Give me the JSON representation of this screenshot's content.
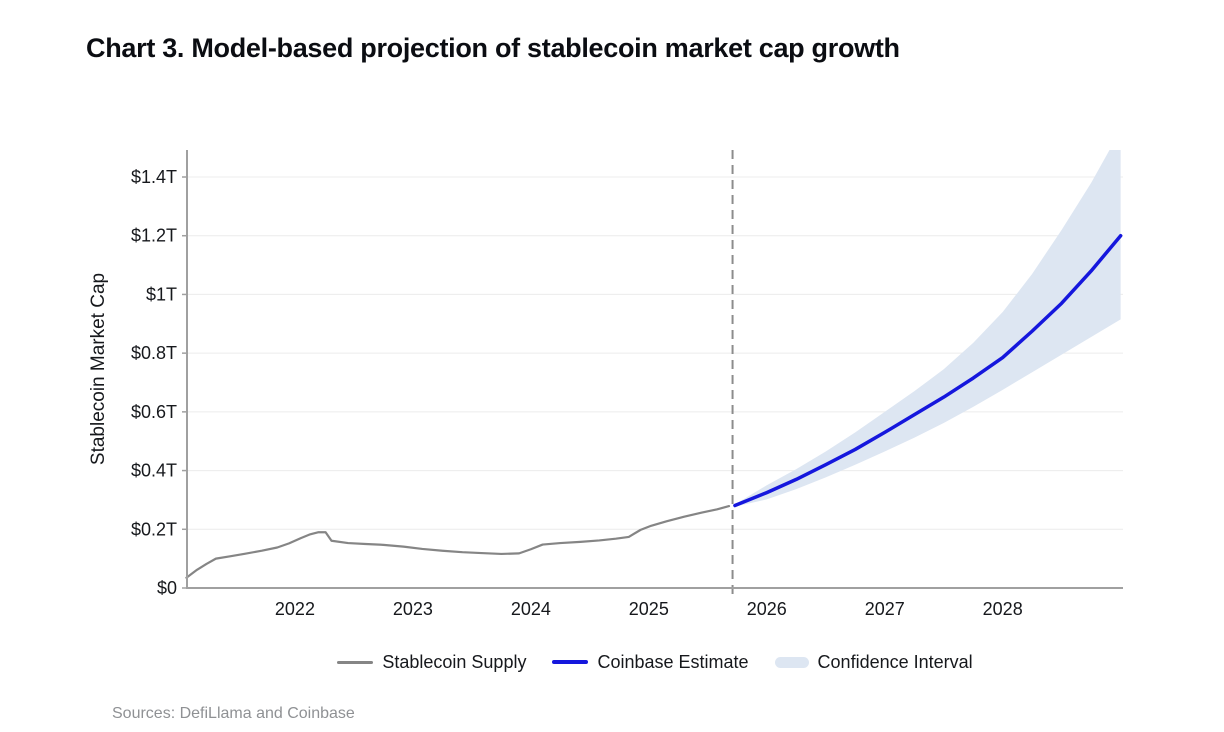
{
  "title": "Chart 3. Model-based projection of stablecoin market cap growth",
  "sources": "Sources: DefiLlama and Coinbase",
  "legend": {
    "items": [
      {
        "label": "Stablecoin Supply",
        "type": "line",
        "color": "#858585"
      },
      {
        "label": "Coinbase Estimate",
        "type": "line",
        "color": "#1517dd"
      },
      {
        "label": "Confidence Interval",
        "type": "area",
        "color": "#dde6f2"
      }
    ]
  },
  "chart_data": {
    "type": "line",
    "title": "Chart 3. Model-based projection of stablecoin market cap growth",
    "xlabel": "",
    "ylabel": "Stablecoin Market Cap",
    "units": "trillions USD",
    "xlim": [
      2021.085,
      2029.02
    ],
    "ylim": [
      0,
      1.492
    ],
    "grid": "horizontal",
    "legend_position": "bottom",
    "x_tick_values": [
      2022,
      2023,
      2024,
      2025,
      2026,
      2027,
      2028
    ],
    "x_tick_labels": [
      "2022",
      "2023",
      "2024",
      "2025",
      "2026",
      "2027",
      "2028"
    ],
    "y_tick_values": [
      0,
      0.2,
      0.4,
      0.6,
      0.8,
      1.0,
      1.2,
      1.4
    ],
    "y_tick_labels": [
      "$0",
      "$0.2T",
      "$0.4T",
      "$0.6T",
      "$0.8T",
      "$1T",
      "$1.2T",
      "$1.4T"
    ],
    "projection_divider_x": 2025.71,
    "colors": {
      "history_line": "#858585",
      "estimate_line": "#1517dd",
      "confidence_band": "#dde6f2",
      "divider": "#8c8c8c",
      "axis": "#a0a0a0",
      "gridline": "#ececec"
    },
    "series": [
      {
        "name": "Stablecoin Supply",
        "role": "history",
        "points": [
          [
            2021.08,
            0.035
          ],
          [
            2021.17,
            0.062
          ],
          [
            2021.25,
            0.082
          ],
          [
            2021.33,
            0.1
          ],
          [
            2021.45,
            0.108
          ],
          [
            2021.58,
            0.117
          ],
          [
            2021.72,
            0.127
          ],
          [
            2021.85,
            0.138
          ],
          [
            2021.95,
            0.152
          ],
          [
            2022.05,
            0.17
          ],
          [
            2022.13,
            0.183
          ],
          [
            2022.2,
            0.19
          ],
          [
            2022.26,
            0.19
          ],
          [
            2022.31,
            0.161
          ],
          [
            2022.45,
            0.153
          ],
          [
            2022.6,
            0.15
          ],
          [
            2022.75,
            0.147
          ],
          [
            2022.92,
            0.141
          ],
          [
            2023.08,
            0.133
          ],
          [
            2023.25,
            0.127
          ],
          [
            2023.42,
            0.122
          ],
          [
            2023.58,
            0.119
          ],
          [
            2023.75,
            0.116
          ],
          [
            2023.9,
            0.118
          ],
          [
            2024.0,
            0.132
          ],
          [
            2024.1,
            0.148
          ],
          [
            2024.25,
            0.153
          ],
          [
            2024.42,
            0.157
          ],
          [
            2024.58,
            0.162
          ],
          [
            2024.72,
            0.168
          ],
          [
            2024.83,
            0.174
          ],
          [
            2024.93,
            0.198
          ],
          [
            2025.02,
            0.212
          ],
          [
            2025.15,
            0.227
          ],
          [
            2025.3,
            0.243
          ],
          [
            2025.45,
            0.257
          ],
          [
            2025.58,
            0.268
          ],
          [
            2025.68,
            0.279
          ]
        ]
      },
      {
        "name": "Coinbase Estimate",
        "role": "projection",
        "points": [
          [
            2025.73,
            0.281
          ],
          [
            2026.0,
            0.325
          ],
          [
            2026.25,
            0.37
          ],
          [
            2026.5,
            0.42
          ],
          [
            2026.75,
            0.472
          ],
          [
            2027.0,
            0.53
          ],
          [
            2027.25,
            0.59
          ],
          [
            2027.5,
            0.65
          ],
          [
            2027.75,
            0.715
          ],
          [
            2028.0,
            0.785
          ],
          [
            2028.25,
            0.875
          ],
          [
            2028.5,
            0.97
          ],
          [
            2028.75,
            1.08
          ],
          [
            2029.0,
            1.2
          ]
        ]
      }
    ],
    "band": {
      "name": "Confidence Interval",
      "upper": [
        [
          2025.73,
          0.285
        ],
        [
          2026.0,
          0.35
        ],
        [
          2026.25,
          0.405
        ],
        [
          2026.5,
          0.465
        ],
        [
          2026.75,
          0.53
        ],
        [
          2027.0,
          0.6
        ],
        [
          2027.25,
          0.67
        ],
        [
          2027.5,
          0.745
        ],
        [
          2027.75,
          0.835
        ],
        [
          2028.0,
          0.94
        ],
        [
          2028.25,
          1.07
        ],
        [
          2028.5,
          1.22
        ],
        [
          2028.75,
          1.38
        ],
        [
          2029.0,
          1.56
        ]
      ],
      "lower": [
        [
          2025.73,
          0.277
        ],
        [
          2026.0,
          0.302
        ],
        [
          2026.25,
          0.337
        ],
        [
          2026.5,
          0.377
        ],
        [
          2026.75,
          0.42
        ],
        [
          2027.0,
          0.465
        ],
        [
          2027.25,
          0.512
        ],
        [
          2027.5,
          0.562
        ],
        [
          2027.75,
          0.617
        ],
        [
          2028.0,
          0.675
        ],
        [
          2028.25,
          0.735
        ],
        [
          2028.5,
          0.795
        ],
        [
          2028.75,
          0.855
        ],
        [
          2029.0,
          0.915
        ]
      ]
    }
  }
}
